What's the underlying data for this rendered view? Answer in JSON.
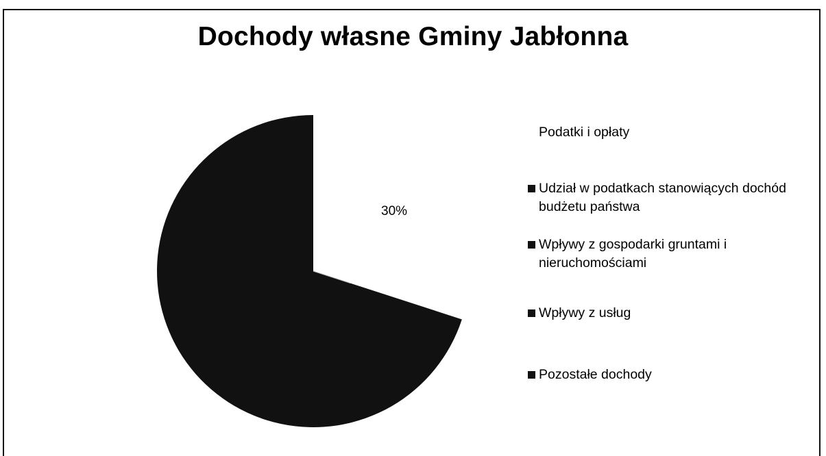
{
  "chart_data": {
    "type": "pie",
    "title": "Dochody własne Gminy Jabłonna",
    "categories": [
      "Podatki i opłaty",
      "Udział w podatkach stanowiących dochód budżetu państwa",
      "Wpływy z gospodarki gruntami i nieruchomościami",
      "Wpływy z usług",
      "Pozostałe dochody"
    ],
    "values": [
      30,
      70,
      0,
      0,
      0
    ],
    "value_unit": "%",
    "data_labels": [
      "30%"
    ],
    "legend": "right",
    "colors": [
      "#ffffff",
      "#111111",
      "#111111",
      "#111111",
      "#111111"
    ]
  }
}
